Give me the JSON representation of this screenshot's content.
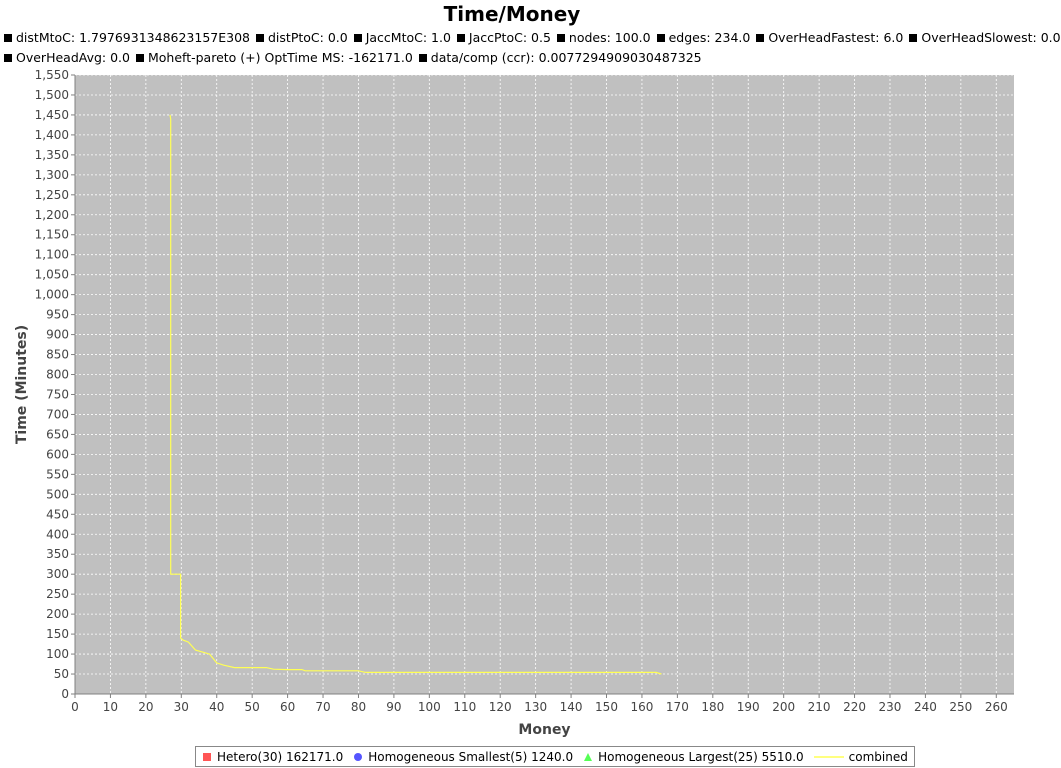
{
  "subtitles_row1": [
    "distMtoC: 1.7976931348623157E308",
    "distPtoC: 0.0",
    "JaccMtoC: 1.0",
    "JaccPtoC: 0.5",
    "nodes: 100.0",
    "edges: 234.0",
    "OverHeadFastest: 6.0",
    "OverHeadSlowest: 0.0"
  ],
  "subtitles_row2": [
    "OverHeadAvg: 0.0",
    "Moheft-pareto (+) OptTime MS: -162171.0",
    "data/comp (ccr): 0.0077294909030487325"
  ],
  "colors": {
    "plot_background": "#c0c0c0",
    "gridline": "#ffffff",
    "hetero": "#ff5555",
    "homog_smallest": "#5555ff",
    "homog_largest": "#55ff55",
    "combined": "#ffff55"
  },
  "chart_data": {
    "type": "line",
    "title": "Time/Money",
    "xlabel": "Money",
    "ylabel": "Time (Minutes)",
    "xlim": [
      0,
      265
    ],
    "ylim": [
      0,
      1550
    ],
    "x_ticks": [
      0,
      10,
      20,
      30,
      40,
      50,
      60,
      70,
      80,
      90,
      100,
      110,
      120,
      130,
      140,
      150,
      160,
      170,
      180,
      190,
      200,
      210,
      220,
      230,
      240,
      250,
      260
    ],
    "y_ticks": [
      0,
      50,
      100,
      150,
      200,
      250,
      300,
      350,
      400,
      450,
      500,
      550,
      600,
      650,
      700,
      750,
      800,
      850,
      900,
      950,
      1000,
      1050,
      1100,
      1150,
      1200,
      1250,
      1300,
      1350,
      1400,
      1450,
      1500,
      1550
    ],
    "y_tick_labels": [
      "0",
      "50",
      "100",
      "150",
      "200",
      "250",
      "300",
      "350",
      "400",
      "450",
      "500",
      "550",
      "600",
      "650",
      "700",
      "750",
      "800",
      "850",
      "900",
      "950",
      "1,000",
      "1,050",
      "1,100",
      "1,150",
      "1,200",
      "1,250",
      "1,300",
      "1,350",
      "1,400",
      "1,450",
      "1,500",
      "1,550"
    ],
    "grid": true,
    "legend_position": "bottom",
    "series": [
      {
        "name": "Hetero(30) 162171.0",
        "marker": "square",
        "color": "#ff5555",
        "points": []
      },
      {
        "name": "Homogeneous Smallest(5) 1240.0",
        "marker": "circle",
        "color": "#5555ff",
        "points": []
      },
      {
        "name": "Homogeneous Largest(25) 5510.0",
        "marker": "triangle",
        "color": "#55ff55",
        "points": []
      },
      {
        "name": "combined",
        "marker": "line",
        "color": "#ffff55",
        "points": [
          [
            26.8,
            1450
          ],
          [
            27.0,
            1440
          ],
          [
            27.0,
            300
          ],
          [
            29.8,
            300
          ],
          [
            29.8,
            140
          ],
          [
            30.5,
            135
          ],
          [
            32,
            130
          ],
          [
            34,
            110
          ],
          [
            36,
            105
          ],
          [
            38,
            100
          ],
          [
            40,
            78
          ],
          [
            42,
            72
          ],
          [
            45,
            66
          ],
          [
            50,
            66
          ],
          [
            54,
            66
          ],
          [
            56,
            62
          ],
          [
            60,
            61
          ],
          [
            64,
            61
          ],
          [
            65,
            58
          ],
          [
            70,
            58
          ],
          [
            75,
            58
          ],
          [
            80,
            58
          ],
          [
            82,
            54
          ],
          [
            90,
            54
          ],
          [
            100,
            54
          ],
          [
            120,
            54
          ],
          [
            140,
            54
          ],
          [
            160,
            54
          ],
          [
            164,
            54
          ],
          [
            165.5,
            50
          ]
        ]
      }
    ]
  }
}
